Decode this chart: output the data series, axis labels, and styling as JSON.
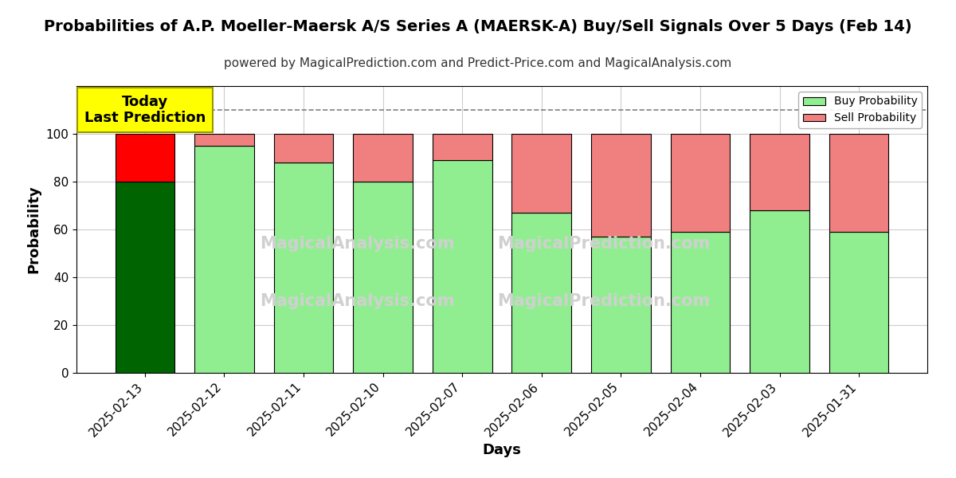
{
  "title": "Probabilities of A.P. Moeller-Maersk A/S Series A (MAERSK-A) Buy/Sell Signals Over 5 Days (Feb 14)",
  "subtitle": "powered by MagicalPrediction.com and Predict-Price.com and MagicalAnalysis.com",
  "xlabel": "Days",
  "ylabel": "Probability",
  "categories": [
    "2025-02-13",
    "2025-02-12",
    "2025-02-11",
    "2025-02-10",
    "2025-02-07",
    "2025-02-06",
    "2025-02-05",
    "2025-02-04",
    "2025-02-03",
    "2025-01-31"
  ],
  "buy_values": [
    80,
    95,
    88,
    80,
    89,
    67,
    57,
    59,
    68,
    59
  ],
  "sell_values": [
    20,
    5,
    12,
    20,
    11,
    33,
    43,
    41,
    32,
    41
  ],
  "buy_colors": [
    "#006400",
    "#90EE90",
    "#90EE90",
    "#90EE90",
    "#90EE90",
    "#90EE90",
    "#90EE90",
    "#90EE90",
    "#90EE90",
    "#90EE90"
  ],
  "sell_colors": [
    "#FF0000",
    "#F08080",
    "#F08080",
    "#F08080",
    "#F08080",
    "#F08080",
    "#F08080",
    "#F08080",
    "#F08080",
    "#F08080"
  ],
  "today_label": "Today\nLast Prediction",
  "today_box_color": "#FFFF00",
  "ylim": [
    0,
    120
  ],
  "dashed_line_y": 110,
  "legend_buy_color": "#90EE90",
  "legend_sell_color": "#F08080",
  "legend_buy_label": "Buy Probability",
  "legend_sell_label": "Sell Probability",
  "bar_edge_color": "#000000",
  "background_color": "#ffffff",
  "grid_color": "#cccccc",
  "title_fontsize": 14,
  "subtitle_fontsize": 11,
  "label_fontsize": 13,
  "tick_fontsize": 11,
  "watermark_color": "#d0d0d0"
}
